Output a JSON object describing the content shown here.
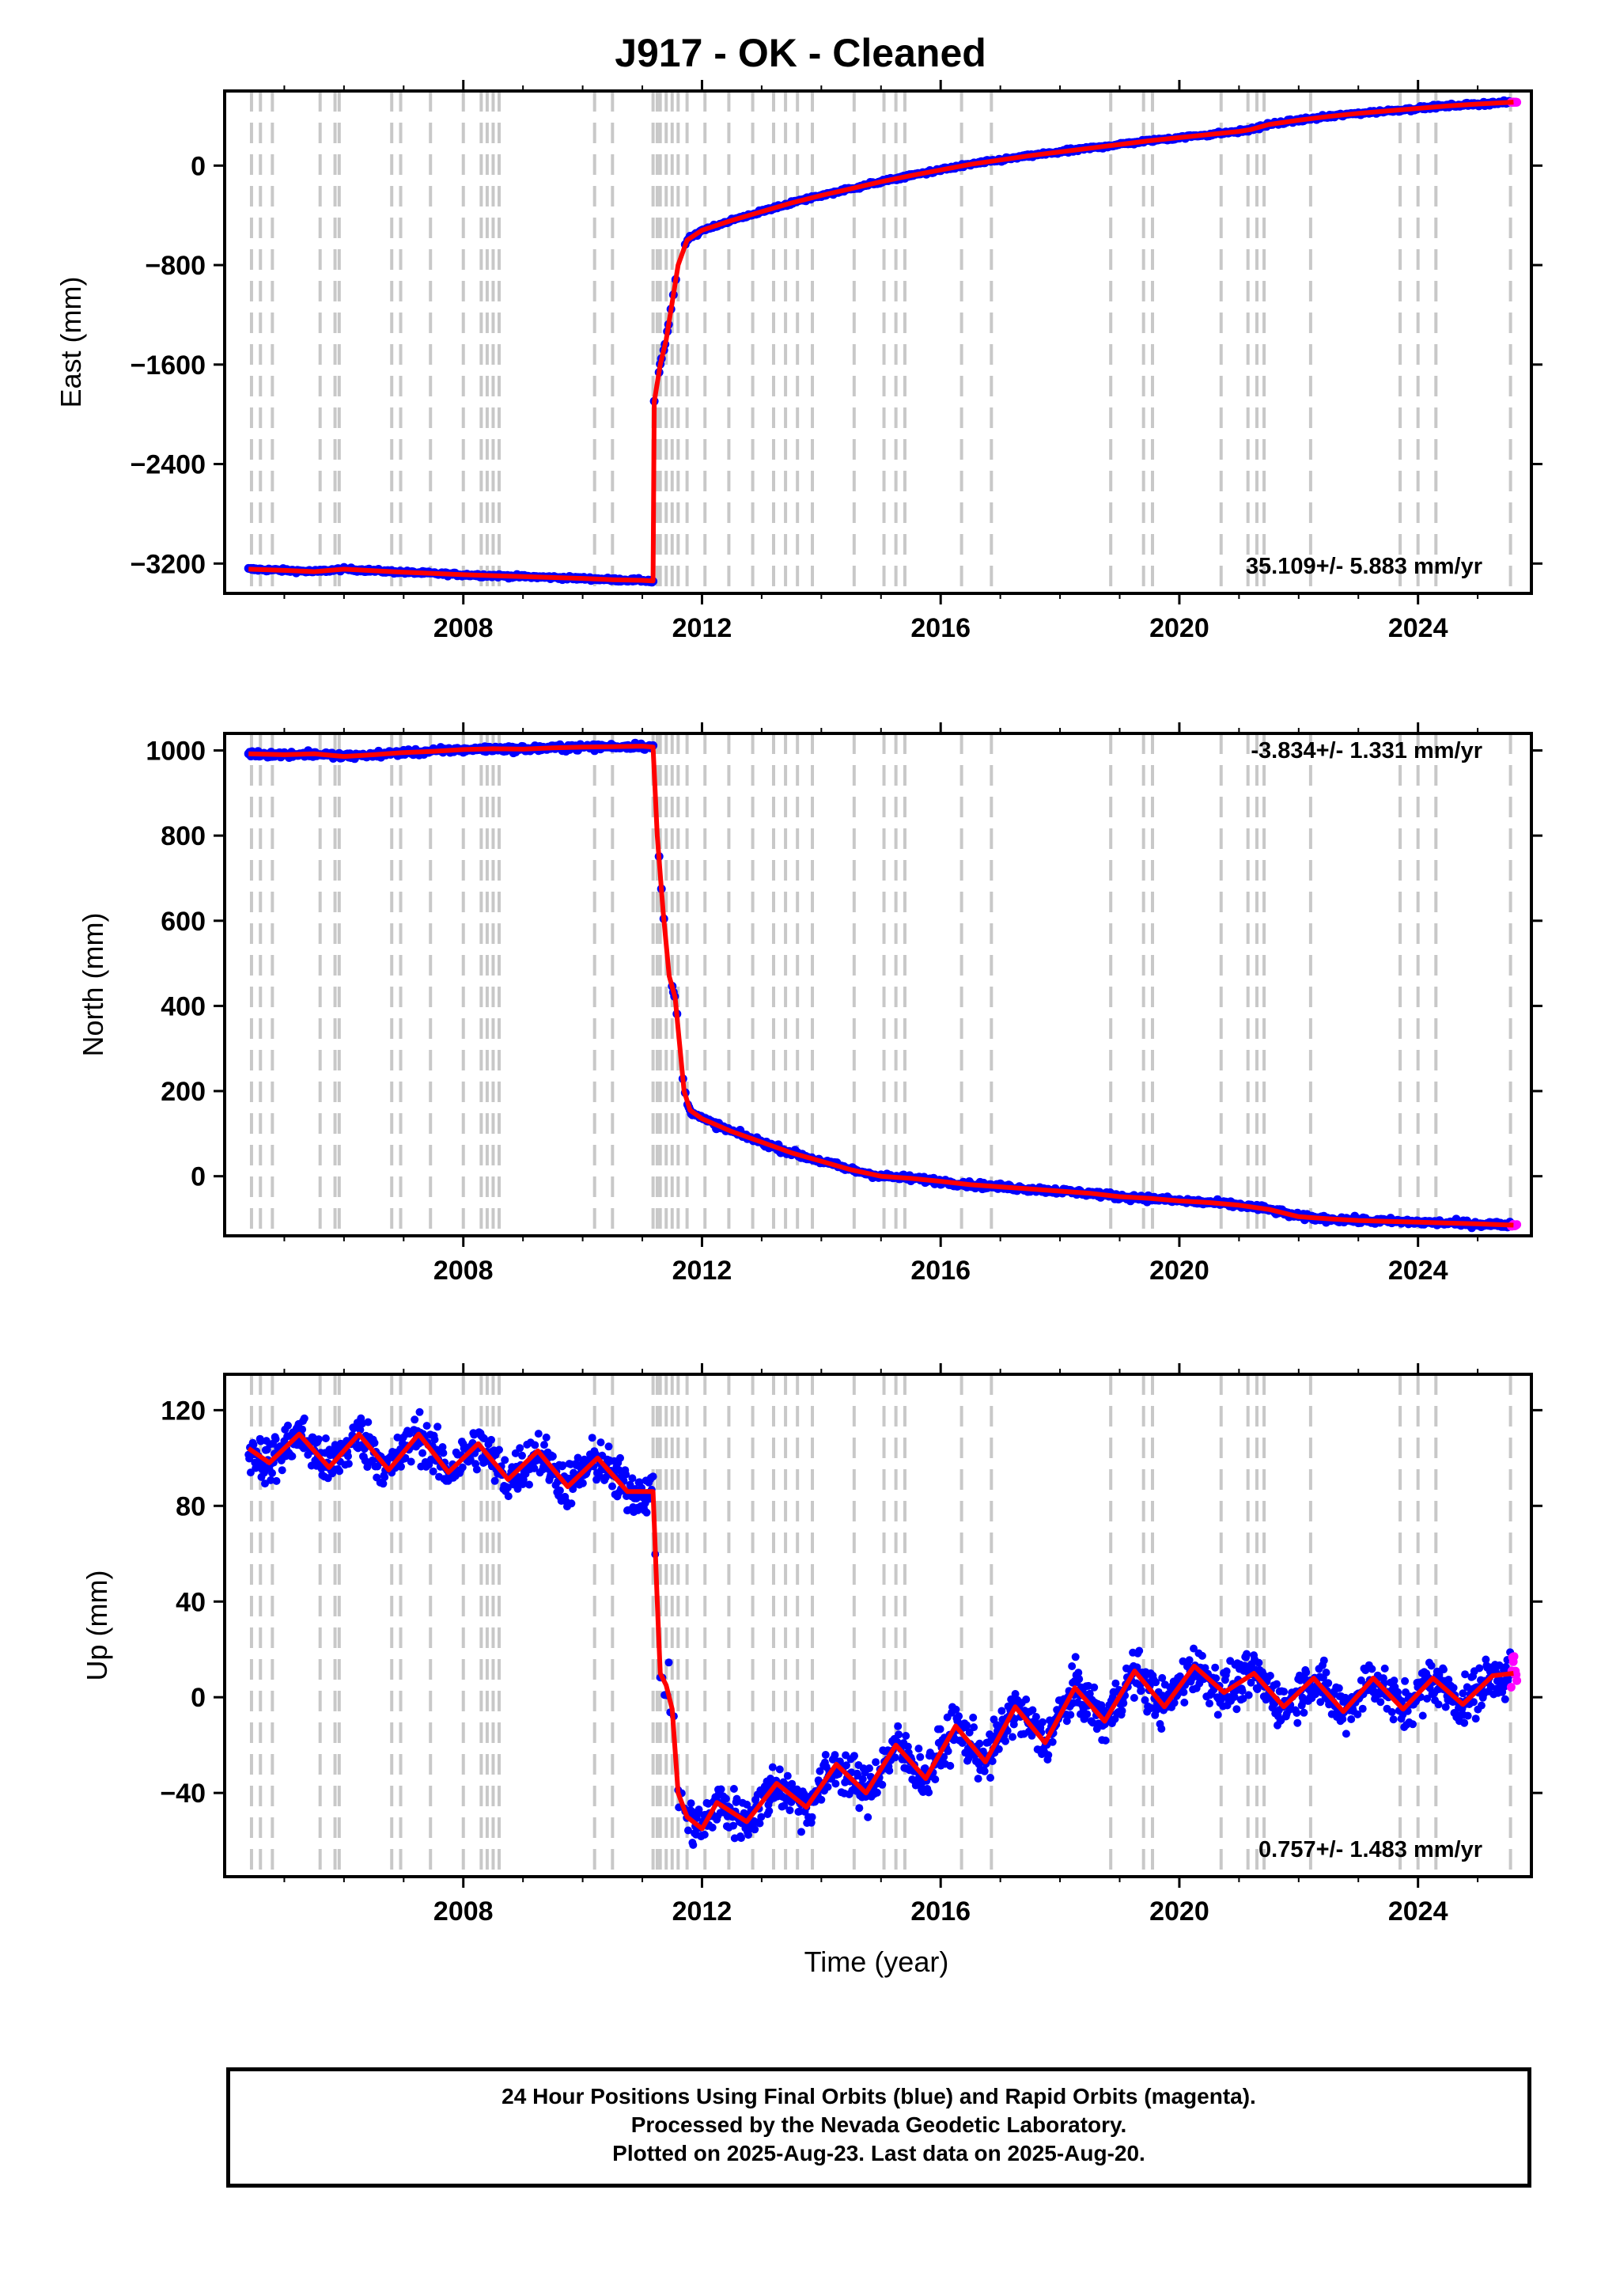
{
  "title": "J917  - OK - Cleaned",
  "x_axis_label": "Time (year)",
  "footer": {
    "line1": "24 Hour Positions Using Final Orbits (blue) and Rapid Orbits (magenta).",
    "line2": "Processed by the Nevada Geodetic Laboratory.",
    "line3": "Plotted on 2025-Aug-23. Last data on 2025-Aug-20."
  },
  "colors": {
    "final_orbits": "#0000ff",
    "rapid_orbits": "#ff00ff",
    "model": "#ff0000",
    "steps": "#c8c8c8"
  },
  "step_epochs": [
    2004.45,
    2004.6,
    2004.8,
    2005.6,
    2005.85,
    2005.92,
    2006.8,
    2006.95,
    2007.45,
    2008.0,
    2008.3,
    2008.4,
    2008.5,
    2008.6,
    2010.2,
    2010.5,
    2011.18,
    2011.25,
    2011.3,
    2011.4,
    2011.5,
    2011.6,
    2011.75,
    2012.05,
    2012.45,
    2012.85,
    2013.2,
    2013.4,
    2013.6,
    2013.85,
    2014.55,
    2015.05,
    2015.25,
    2015.4,
    2016.35,
    2016.85,
    2018.85,
    2019.4,
    2019.55,
    2020.7,
    2021.15,
    2021.3,
    2021.42,
    2022.2,
    2023.7,
    2024.0,
    2024.3,
    2025.55
  ],
  "chart_data": [
    {
      "type": "scatter",
      "name": "east",
      "ylabel": "East (mm)",
      "xlim": [
        2004.0,
        2025.9
      ],
      "ylim": [
        -3440,
        600
      ],
      "x_ticks": [
        "2008",
        "2012",
        "2016",
        "2020",
        "2024"
      ],
      "y_ticks": [
        "0",
        "−800",
        "−1600",
        "−2400",
        "−3200"
      ],
      "y_tick_values": [
        0,
        -800,
        -1600,
        -2400,
        -3200
      ],
      "x_tick_values": [
        2008,
        2012,
        2016,
        2020,
        2024
      ],
      "rate": "35.109+/- 5.883 mm/yr",
      "model": {
        "x": [
          2004.4,
          2005.0,
          2005.5,
          2006.0,
          2007.0,
          2008.0,
          2009.0,
          2010.0,
          2010.5,
          2011.0,
          2011.18,
          2011.2,
          2011.3,
          2011.4,
          2011.5,
          2011.6,
          2011.75,
          2012.0,
          2012.5,
          2013.0,
          2013.5,
          2014.0,
          2014.5,
          2015.0,
          2015.5,
          2016.0,
          2016.5,
          2017.0,
          2017.5,
          2018.0,
          2018.5,
          2019.0,
          2019.5,
          2020.0,
          2020.5,
          2021.0,
          2021.2,
          2021.5,
          2022.0,
          2022.5,
          2023.0,
          2023.5,
          2024.0,
          2024.5,
          2025.0,
          2025.6
        ],
        "y": [
          -3245,
          -3255,
          -3265,
          -3245,
          -3270,
          -3290,
          -3305,
          -3320,
          -3330,
          -3335,
          -3340,
          -1900,
          -1600,
          -1400,
          -1100,
          -800,
          -600,
          -520,
          -440,
          -370,
          -300,
          -240,
          -185,
          -130,
          -80,
          -35,
          10,
          45,
          80,
          110,
          140,
          170,
          200,
          225,
          250,
          275,
          290,
          330,
          365,
          395,
          420,
          440,
          460,
          480,
          495,
          510
        ]
      }
    },
    {
      "type": "scatter",
      "name": "north",
      "ylabel": "North (mm)",
      "xlim": [
        2004.0,
        2025.9
      ],
      "ylim": [
        -140,
        1040
      ],
      "x_ticks": [
        "2008",
        "2012",
        "2016",
        "2020",
        "2024"
      ],
      "y_ticks": [
        "1000",
        "800",
        "600",
        "400",
        "200",
        "0"
      ],
      "y_tick_values": [
        1000,
        800,
        600,
        400,
        200,
        0
      ],
      "x_tick_values": [
        2008,
        2012,
        2016,
        2020,
        2024
      ],
      "rate": "-3.834+/- 1.331 mm/yr",
      "model": {
        "x": [
          2004.4,
          2005.0,
          2005.5,
          2006.0,
          2006.5,
          2007.0,
          2007.5,
          2008.0,
          2008.5,
          2009.0,
          2009.5,
          2010.0,
          2010.5,
          2011.0,
          2011.18,
          2011.25,
          2011.35,
          2011.45,
          2011.55,
          2011.7,
          2011.8,
          2012.0,
          2012.5,
          2013.0,
          2013.5,
          2014.0,
          2014.5,
          2015.0,
          2015.5,
          2016.0,
          2016.5,
          2017.0,
          2017.5,
          2018.0,
          2018.5,
          2019.0,
          2019.5,
          2020.0,
          2020.5,
          2021.0,
          2021.5,
          2022.0,
          2022.5,
          2023.0,
          2023.5,
          2024.0,
          2024.5,
          2025.0,
          2025.6
        ],
        "y": [
          992,
          990,
          992,
          986,
          990,
          995,
          998,
          1002,
          1004,
          1003,
          1006,
          1008,
          1009,
          1010,
          1008,
          800,
          620,
          470,
          420,
          200,
          155,
          135,
          105,
          80,
          55,
          35,
          15,
          0,
          -5,
          -12,
          -20,
          -25,
          -30,
          -35,
          -40,
          -48,
          -52,
          -58,
          -62,
          -68,
          -78,
          -95,
          -100,
          -104,
          -106,
          -108,
          -110,
          -112,
          -115
        ]
      }
    },
    {
      "type": "scatter",
      "name": "up",
      "ylabel": "Up (mm)",
      "xlim": [
        2004.0,
        2025.9
      ],
      "ylim": [
        -75,
        135
      ],
      "x_ticks": [
        "2008",
        "2012",
        "2016",
        "2020",
        "2024"
      ],
      "y_ticks": [
        "120",
        "80",
        "40",
        "0",
        "−40"
      ],
      "y_tick_values": [
        120,
        80,
        40,
        0,
        -40
      ],
      "x_tick_values": [
        2008,
        2012,
        2016,
        2020,
        2024
      ],
      "rate": "0.757+/- 1.483 mm/yr",
      "model": {
        "x": [
          2004.4,
          2004.75,
          2005.25,
          2005.75,
          2006.25,
          2006.75,
          2007.25,
          2007.75,
          2008.25,
          2008.75,
          2009.25,
          2009.75,
          2010.25,
          2010.75,
          2011.18,
          2011.25,
          2011.3,
          2011.4,
          2011.5,
          2011.6,
          2011.75,
          2012.0,
          2012.25,
          2012.75,
          2013.25,
          2013.75,
          2014.25,
          2014.75,
          2015.25,
          2015.75,
          2016.25,
          2016.75,
          2017.25,
          2017.75,
          2018.25,
          2018.75,
          2019.25,
          2019.75,
          2020.25,
          2020.75,
          2021.25,
          2021.75,
          2022.25,
          2022.75,
          2023.25,
          2023.75,
          2024.25,
          2024.75,
          2025.25,
          2025.6
        ],
        "y": [
          104,
          98,
          110,
          96,
          110,
          95,
          110,
          94,
          106,
          91,
          103,
          88,
          100,
          86,
          86,
          40,
          10,
          5,
          -5,
          -40,
          -50,
          -55,
          -44,
          -52,
          -36,
          -46,
          -28,
          -40,
          -20,
          -34,
          -12,
          -27,
          -4,
          -19,
          4,
          -10,
          11,
          -4,
          13,
          2,
          10,
          -4,
          8,
          -6,
          8,
          -5,
          8,
          -3,
          9,
          10
        ]
      },
      "scatter_band": {
        "description_free_value": 8
      }
    }
  ]
}
